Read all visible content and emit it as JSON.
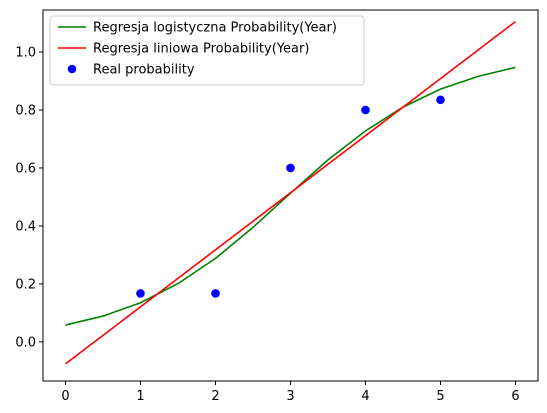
{
  "chart_data": {
    "type": "line",
    "title": "",
    "xlabel": "",
    "ylabel": "",
    "xlim": [
      -0.3,
      6.3
    ],
    "ylim": [
      -0.135,
      1.145
    ],
    "xticks": [
      0,
      1,
      2,
      3,
      4,
      5,
      6
    ],
    "yticks": [
      0.0,
      0.2,
      0.4,
      0.6,
      0.8,
      1.0
    ],
    "xtick_labels": [
      "0",
      "1",
      "2",
      "3",
      "4",
      "5",
      "6"
    ],
    "ytick_labels": [
      "0.0",
      "0.2",
      "0.4",
      "0.6",
      "0.8",
      "1.0"
    ],
    "grid": false,
    "legend_position": "top-left",
    "series": [
      {
        "name": "Regresja logistyczna Probability(Year)",
        "kind": "line",
        "color": "#008000",
        "x": [
          0,
          0.5,
          1,
          1.5,
          2,
          2.5,
          3,
          3.5,
          4,
          4.5,
          5,
          5.5,
          6
        ],
        "y": [
          0.058,
          0.089,
          0.135,
          0.201,
          0.288,
          0.395,
          0.513,
          0.628,
          0.728,
          0.81,
          0.872,
          0.916,
          0.947
        ]
      },
      {
        "name": "Regresja liniowa Probability(Year)",
        "kind": "line",
        "color": "#ff0000",
        "x": [
          0,
          6
        ],
        "y": [
          -0.076,
          1.105
        ]
      },
      {
        "name": "Real probability",
        "kind": "scatter",
        "color": "#0000ff",
        "x": [
          1,
          2,
          3,
          4,
          5
        ],
        "y": [
          0.167,
          0.167,
          0.6,
          0.8,
          0.835
        ]
      }
    ]
  }
}
